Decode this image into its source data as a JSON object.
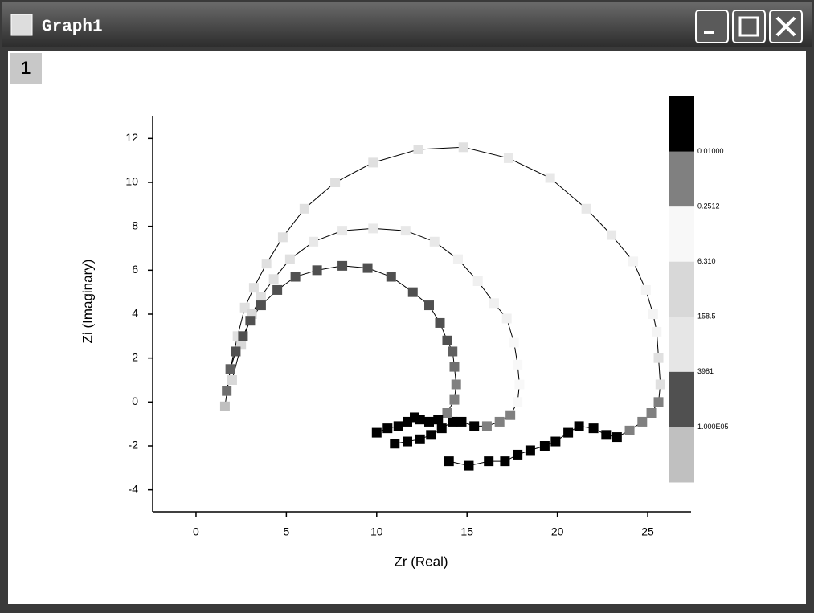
{
  "window": {
    "title": "Graph1",
    "layer": "1"
  },
  "chart_data": {
    "type": "scatter",
    "xlabel": "Zr (Real)",
    "ylabel": "Zi (Imaginary)",
    "xlim": [
      -2.4,
      27.4
    ],
    "ylim": [
      -5,
      13
    ],
    "xticks": [
      0,
      5,
      10,
      15,
      20,
      25
    ],
    "yticks": [
      -4,
      -2,
      0,
      2,
      4,
      6,
      8,
      10,
      12
    ],
    "line_color": "#000000",
    "series": [
      {
        "x": [
          1.6,
          1.9,
          2.3,
          2.7,
          3.2,
          3.9,
          4.8,
          6.0,
          7.7,
          9.8,
          12.3,
          14.8,
          17.3,
          19.6,
          21.6,
          23.0,
          24.2,
          24.9,
          25.3,
          25.5,
          25.6,
          25.7,
          25.6,
          25.2,
          24.7,
          24.0,
          23.3,
          22.7,
          22.0,
          21.2,
          20.6,
          19.9,
          19.3,
          18.5,
          17.8,
          17.1,
          16.2,
          15.1,
          14.0
        ],
        "values": [
          -0.2,
          1.5,
          3.0,
          4.3,
          5.2,
          6.3,
          7.5,
          8.8,
          10.0,
          10.9,
          11.5,
          11.6,
          11.1,
          10.2,
          8.8,
          7.6,
          6.4,
          5.1,
          4.0,
          3.2,
          2.0,
          0.8,
          0.0,
          -0.5,
          -0.9,
          -1.3,
          -1.6,
          -1.5,
          -1.2,
          -1.1,
          -1.4,
          -1.8,
          -2.0,
          -2.2,
          -2.4,
          -2.7,
          -2.7,
          -2.9,
          -2.7
        ],
        "colors": [
          "#c0c0c0",
          "#c0c0c0",
          "#e0e0e0",
          "#e0e0e0",
          "#e0e0e0",
          "#e0e0e0",
          "#e0e0e0",
          "#e0e0e0",
          "#e0e0e0",
          "#e0e0e0",
          "#e0e0e0",
          "#e0e0e0",
          "#e8e8e8",
          "#e8e8e8",
          "#e8e8e8",
          "#e8e8e8",
          "#f4f4f4",
          "#f4f4f4",
          "#f4f4f4",
          "#f4f4f4",
          "#e0e0e0",
          "#e0e0e0",
          "#808080",
          "#808080",
          "#808080",
          "#808080",
          "#000000",
          "#000000",
          "#000000",
          "#000000",
          "#000000",
          "#000000",
          "#000000",
          "#000000",
          "#000000",
          "#000000",
          "#000000",
          "#000000",
          "#000000"
        ]
      },
      {
        "x": [
          2.0,
          2.5,
          3.1,
          3.6,
          4.3,
          5.2,
          6.5,
          8.1,
          9.8,
          11.6,
          13.2,
          14.5,
          15.6,
          16.5,
          17.2,
          17.6,
          17.8,
          17.9,
          17.8,
          17.4,
          16.8,
          16.1,
          15.4,
          14.7,
          14.2,
          13.6,
          13.0,
          12.4,
          11.7,
          11.0
        ],
        "values": [
          1.0,
          2.6,
          4.0,
          4.8,
          5.6,
          6.5,
          7.3,
          7.8,
          7.9,
          7.8,
          7.3,
          6.5,
          5.5,
          4.5,
          3.8,
          2.7,
          1.7,
          0.8,
          0.0,
          -0.6,
          -0.9,
          -1.1,
          -1.1,
          -0.9,
          -0.9,
          -1.2,
          -1.5,
          -1.7,
          -1.8,
          -1.9
        ],
        "colors": [
          "#d8d8d8",
          "#d8d8d8",
          "#d8d8d8",
          "#e0e0e0",
          "#e0e0e0",
          "#e0e0e0",
          "#e8e8e8",
          "#e8e8e8",
          "#e8e8e8",
          "#e8e8e8",
          "#e8e8e8",
          "#f0f0f0",
          "#f0f0f0",
          "#f0f0f0",
          "#f0f0f0",
          "#f8f8f8",
          "#f8f8f8",
          "#f8f8f8",
          "#f8f8f8",
          "#808080",
          "#808080",
          "#808080",
          "#000000",
          "#000000",
          "#000000",
          "#000000",
          "#000000",
          "#000000",
          "#000000",
          "#000000"
        ]
      },
      {
        "x": [
          1.7,
          1.9,
          2.2,
          2.6,
          3.0,
          3.6,
          4.5,
          5.5,
          6.7,
          8.1,
          9.5,
          10.8,
          12.0,
          12.9,
          13.5,
          13.9,
          14.2,
          14.3,
          14.4,
          14.3,
          13.9,
          13.4,
          12.9,
          12.4,
          12.1,
          11.7,
          11.2,
          10.6,
          10.0
        ],
        "values": [
          0.5,
          1.5,
          2.3,
          3.0,
          3.7,
          4.4,
          5.1,
          5.7,
          6.0,
          6.2,
          6.1,
          5.7,
          5.0,
          4.4,
          3.6,
          2.8,
          2.3,
          1.6,
          0.8,
          0.1,
          -0.5,
          -0.8,
          -0.9,
          -0.8,
          -0.7,
          -0.9,
          -1.1,
          -1.2,
          -1.4
        ],
        "colors": [
          "#707070",
          "#606060",
          "#505050",
          "#505050",
          "#505050",
          "#505050",
          "#505050",
          "#505050",
          "#505050",
          "#505050",
          "#505050",
          "#505050",
          "#505050",
          "#505050",
          "#505050",
          "#505050",
          "#606060",
          "#707070",
          "#808080",
          "#808080",
          "#808080",
          "#000000",
          "#000000",
          "#000000",
          "#000000",
          "#000000",
          "#000000",
          "#000000",
          "#000000"
        ]
      }
    ],
    "colormap": {
      "labels": [
        "0.01000",
        "0.2512",
        "6.310",
        "158.5",
        "3981",
        "1.000E05"
      ],
      "colors": [
        "#000000",
        "#808080",
        "#f8f8f8",
        "#d8d8d8",
        "#e6e6e6",
        "#505050",
        "#c0c0c0"
      ]
    }
  }
}
